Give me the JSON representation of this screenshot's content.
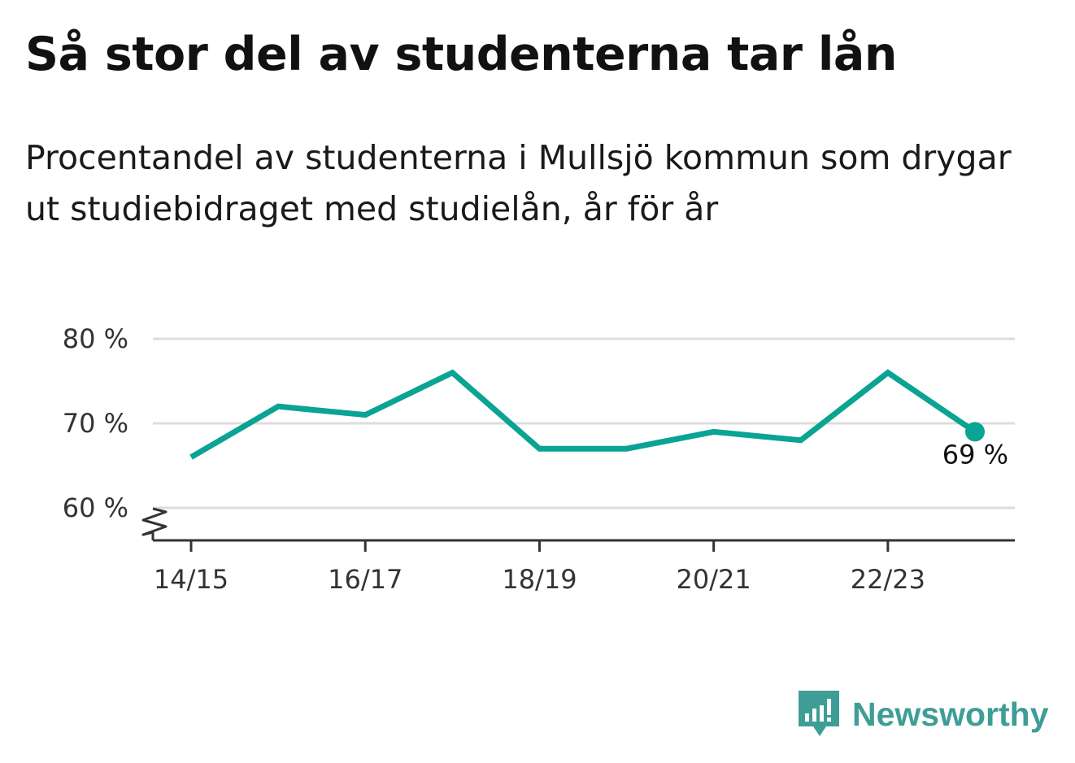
{
  "title": "Så stor del av studenterna tar lån",
  "subtitle": "Procentandel av studenterna i Mullsjö kommun som drygar ut studiebidraget med studielån, år för år",
  "brand": {
    "name": "Newsworthy",
    "color": "#3e9e96"
  },
  "chart_data": {
    "type": "line",
    "x": [
      "14/15",
      "15/16",
      "16/17",
      "17/18",
      "18/19",
      "19/20",
      "20/21",
      "21/22",
      "22/23",
      "23/24"
    ],
    "xticks": [
      "14/15",
      "16/17",
      "18/19",
      "20/21",
      "22/23"
    ],
    "series": [
      {
        "values": [
          66,
          72,
          71,
          76,
          67,
          67,
          69,
          68,
          76,
          69
        ],
        "color": "#0aa394"
      }
    ],
    "yticks": [
      {
        "value": 60,
        "label": "60 %"
      },
      {
        "value": 70,
        "label": "70 %"
      },
      {
        "value": 80,
        "label": "80 %"
      }
    ],
    "ylim": [
      56,
      80
    ],
    "grid": true,
    "axis_break": true,
    "last_value_label": "69 %"
  }
}
